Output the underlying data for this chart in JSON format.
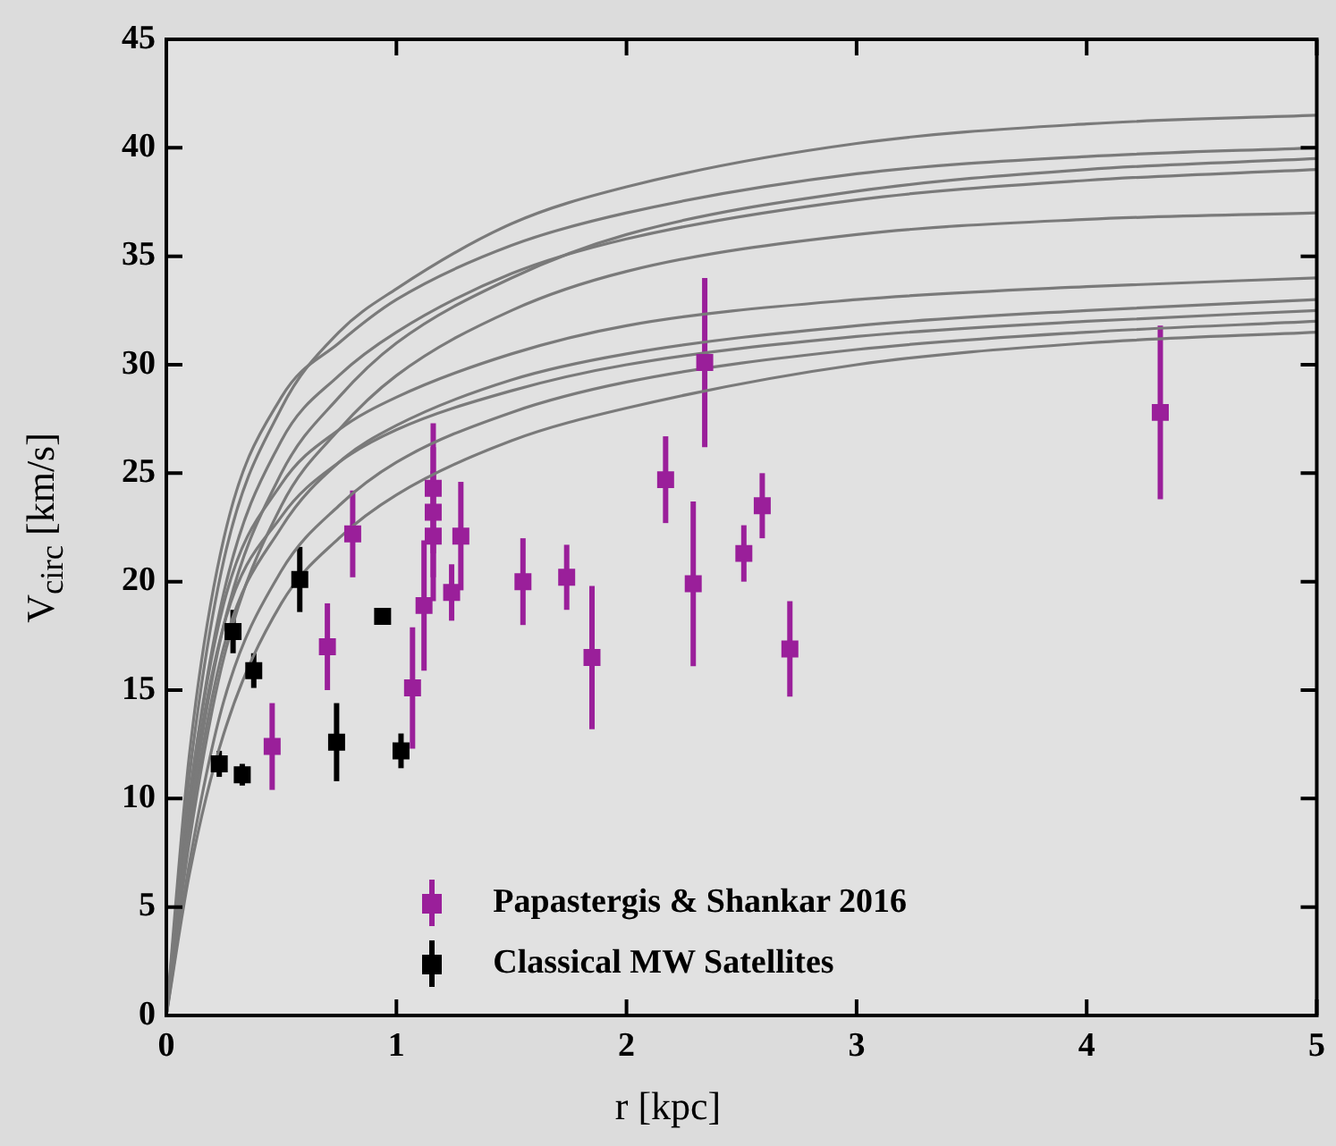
{
  "chart_data": {
    "type": "scatter",
    "xlabel": "r [kpc]",
    "ylabel": "V$_{circ}$ [km/s]",
    "xlim": [
      0,
      5
    ],
    "xticks": [
      0,
      1,
      2,
      3,
      4,
      5
    ],
    "ylim": [
      0,
      45
    ],
    "yticks": [
      0,
      5,
      10,
      15,
      20,
      25,
      30,
      35,
      40,
      45
    ],
    "grid": false,
    "legend": "bottom",
    "series": [
      {
        "type": "line",
        "marker": "none",
        "color": "#7a7a7a",
        "x": [
          0,
          0.1,
          0.25,
          0.5,
          0.75,
          1,
          1.5,
          2,
          3,
          4,
          5
        ],
        "values": [
          0,
          11,
          21,
          28,
          31.5,
          33.5,
          36.5,
          38.2,
          40.2,
          41.1,
          41.5
        ]
      },
      {
        "type": "line",
        "marker": "none",
        "color": "#7a7a7a",
        "x": [
          0,
          0.1,
          0.25,
          0.5,
          0.75,
          1,
          1.5,
          2,
          3,
          4,
          5
        ],
        "values": [
          0,
          12,
          22,
          28.5,
          31,
          33,
          35.5,
          37,
          38.8,
          39.6,
          40
        ]
      },
      {
        "type": "line",
        "marker": "none",
        "color": "#7a7a7a",
        "x": [
          0,
          0.1,
          0.25,
          0.5,
          0.75,
          1,
          1.5,
          2,
          3,
          4,
          5
        ],
        "values": [
          0,
          9,
          18,
          25,
          28.5,
          31,
          34,
          36,
          38,
          39,
          39.5
        ]
      },
      {
        "type": "line",
        "marker": "none",
        "color": "#7a7a7a",
        "x": [
          0,
          0.1,
          0.25,
          0.5,
          0.75,
          1,
          1.5,
          2,
          3,
          4,
          5
        ],
        "values": [
          0,
          10,
          19.5,
          26.5,
          29.5,
          31.5,
          34.2,
          35.8,
          37.6,
          38.5,
          39
        ]
      },
      {
        "type": "line",
        "marker": "none",
        "color": "#7a7a7a",
        "x": [
          0,
          0.1,
          0.25,
          0.5,
          0.75,
          1,
          1.5,
          2,
          3,
          4,
          5
        ],
        "values": [
          0,
          8,
          16.5,
          23.5,
          27,
          29.5,
          32.5,
          34.3,
          36,
          36.7,
          37
        ]
      },
      {
        "type": "line",
        "marker": "none",
        "color": "#7a7a7a",
        "x": [
          0,
          0.1,
          0.25,
          0.5,
          0.75,
          1,
          1.5,
          2,
          3,
          4,
          5
        ],
        "values": [
          0,
          10,
          19,
          24.5,
          27,
          28.5,
          30.5,
          31.8,
          33,
          33.6,
          34
        ]
      },
      {
        "type": "line",
        "marker": "none",
        "color": "#7a7a7a",
        "x": [
          0,
          0.1,
          0.25,
          0.5,
          0.75,
          1,
          1.5,
          2,
          3,
          4,
          5
        ],
        "values": [
          0,
          8.5,
          17,
          22.5,
          25.5,
          27.2,
          29.3,
          30.5,
          31.8,
          32.5,
          33
        ]
      },
      {
        "type": "line",
        "marker": "none",
        "color": "#7a7a7a",
        "x": [
          0,
          0.1,
          0.25,
          0.5,
          0.75,
          1,
          1.5,
          2,
          3,
          4,
          5
        ],
        "values": [
          0,
          9.5,
          18,
          23,
          25.5,
          27,
          28.8,
          30,
          31.3,
          32,
          32.5
        ]
      },
      {
        "type": "line",
        "marker": "none",
        "color": "#7a7a7a",
        "x": [
          0,
          0.1,
          0.25,
          0.5,
          0.75,
          1,
          1.5,
          2,
          3,
          4,
          5
        ],
        "values": [
          0,
          7,
          14.5,
          20.5,
          23.5,
          25.5,
          27.8,
          29.2,
          30.7,
          31.5,
          32
        ]
      },
      {
        "type": "line",
        "marker": "none",
        "color": "#7a7a7a",
        "x": [
          0,
          0.1,
          0.25,
          0.5,
          0.75,
          1,
          1.5,
          2,
          3,
          4,
          5
        ],
        "values": [
          0,
          6.5,
          13,
          19,
          22,
          24,
          26.5,
          28,
          30,
          31,
          31.5
        ]
      },
      {
        "marker": "square",
        "name": "Papastergis & Shankar 2016",
        "color": "#9a1f9a",
        "x": [
          0.46,
          0.7,
          0.81,
          1.07,
          1.12,
          1.16,
          1.16,
          1.16,
          1.24,
          1.28,
          1.55,
          1.74,
          1.85,
          2.17,
          2.29,
          2.34,
          2.51,
          2.59,
          2.71,
          4.32
        ],
        "values": [
          12.4,
          17.0,
          22.2,
          15.1,
          18.9,
          24.3,
          23.2,
          22.1,
          19.5,
          22.1,
          20.0,
          20.2,
          16.5,
          24.7,
          19.9,
          30.1,
          21.3,
          23.5,
          16.9,
          27.8
        ],
        "errors": [
          2,
          2,
          2,
          2.8,
          3,
          3,
          3,
          3,
          1.3,
          2.5,
          2,
          1.5,
          3.3,
          2,
          3.8,
          3.9,
          1.3,
          1.5,
          2.2,
          4
        ]
      },
      {
        "marker": "square",
        "name": "Classical MW Satellites",
        "color": "#000000",
        "x": [
          0.23,
          0.29,
          0.33,
          0.38,
          0.58,
          0.74,
          0.94,
          1.02
        ],
        "values": [
          11.6,
          17.7,
          11.1,
          15.9,
          20.1,
          12.6,
          18.4,
          12.2
        ],
        "errors": [
          0.6,
          1,
          0.5,
          0.8,
          1.5,
          1.8,
          0.3,
          0.8
        ]
      }
    ]
  }
}
